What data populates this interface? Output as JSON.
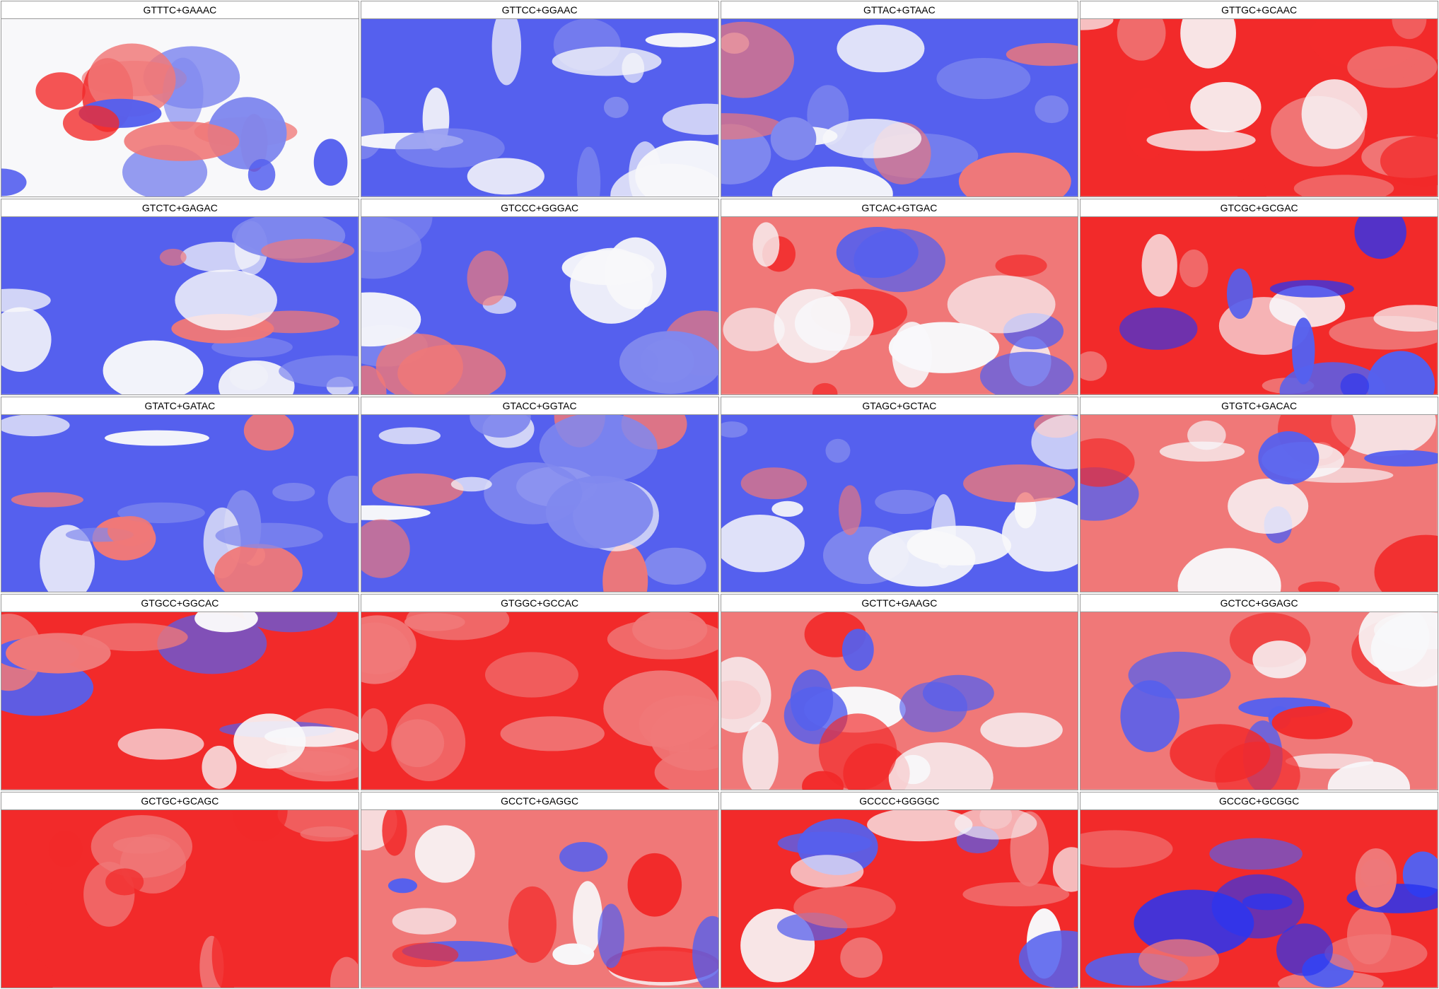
{
  "panels": [
    "GTTTC+GAAAC",
    "GTTCC+GGAAC",
    "GTTAC+GTAAC",
    "GTTGC+GCAAC",
    "GTCTC+GAGAC",
    "GTCCC+GGGAC",
    "GTCAC+GTGAC",
    "GTCGC+GCGAC",
    "GTATC+GATAC",
    "GTACC+GGTAC",
    "GTAGC+GCTAC",
    "GTGTC+GACAC",
    "GTGCC+GGCAC",
    "GTGGC+GCCAC",
    "GCTTC+GAAGC",
    "GCTCC+GGAGC",
    "GCTGC+GCAGC",
    "GCCTC+GAGGC",
    "GCCCC+GGGGC",
    "GCCGC+GCGGC"
  ]
}
